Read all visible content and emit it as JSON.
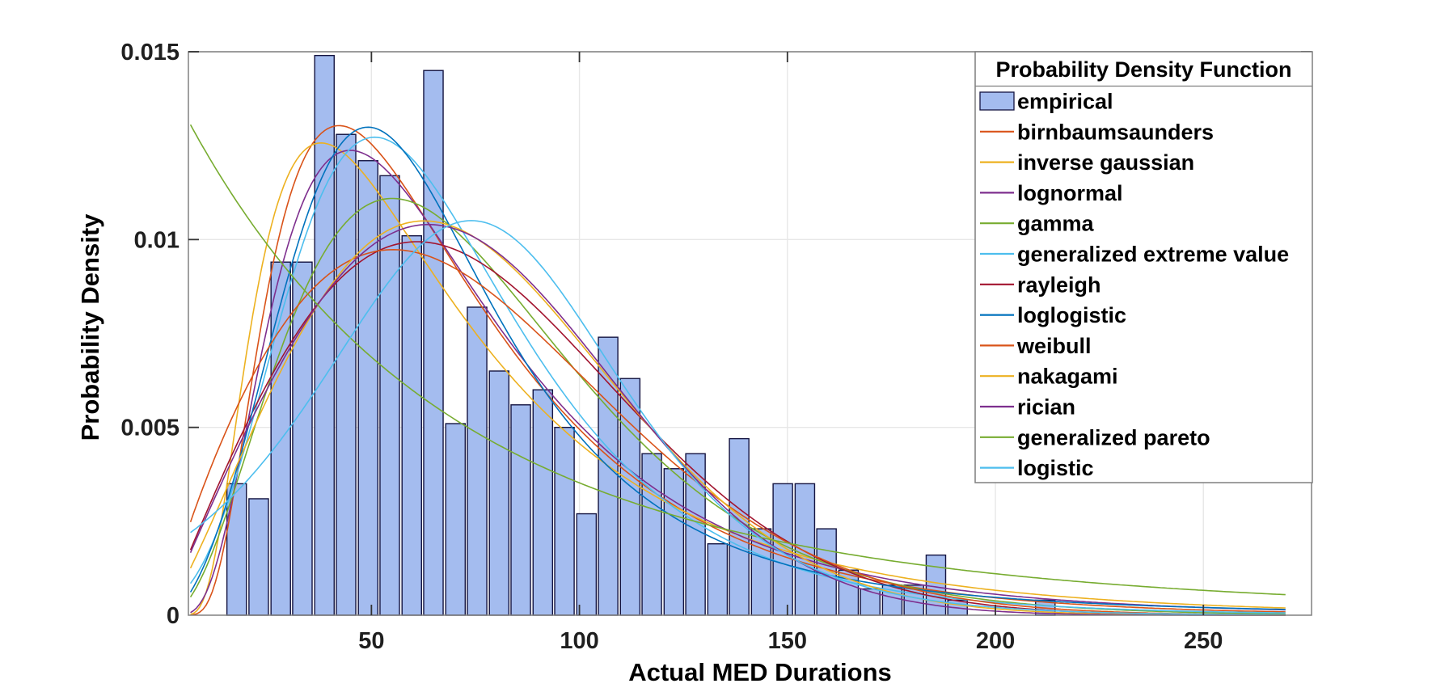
{
  "figure": {
    "background": "#ffffff"
  },
  "style": {
    "grid_color": "#E7E7E7",
    "box_color": "#808080",
    "tick_color": "#333333",
    "tick_label_color": "#1F1F1F",
    "text_color": "#000000",
    "bar_fill": "#A4BCEF",
    "bar_edge": "#131340",
    "legend_border": "#7F7F7F",
    "legend_background": "#FFFFFF"
  },
  "legend": {
    "title": "Probability Density Function"
  },
  "chart_data": {
    "type": "bar",
    "subtype": "histogram_with_fitted_pdf_curves",
    "title": "",
    "xlabel": "Actual MED Durations",
    "ylabel": "Probability Density",
    "xlim": [
      6,
      276
    ],
    "ylim": [
      0,
      0.015
    ],
    "xticks": [
      50,
      100,
      150,
      200,
      250
    ],
    "ytick_values": [
      0,
      0.005,
      0.01,
      0.015
    ],
    "ytick_labels": [
      "0",
      "0.005",
      "0.01",
      "0.015"
    ],
    "grid": true,
    "legend_position": "northeast-inside",
    "empirical": {
      "label": "empirical",
      "bin_width": 5.26,
      "bar_width_units": 4.68,
      "bin_centers": [
        17.6,
        22.9,
        28.2,
        33.4,
        38.7,
        43.9,
        49.2,
        54.4,
        59.7,
        64.9,
        70.2,
        75.4,
        80.7,
        85.9,
        91.2,
        96.4,
        101.7,
        106.9,
        112.2,
        117.4,
        122.7,
        127.9,
        133.2,
        138.4,
        143.7,
        148.9,
        154.2,
        159.4,
        164.7,
        169.9,
        175.2,
        180.4,
        185.7,
        190.9,
        212.0
      ],
      "densities": [
        0.0035,
        0.0031,
        0.0094,
        0.0094,
        0.0149,
        0.0128,
        0.0121,
        0.0117,
        0.0101,
        0.0145,
        0.0051,
        0.0082,
        0.0065,
        0.0056,
        0.006,
        0.005,
        0.0027,
        0.0074,
        0.0063,
        0.0043,
        0.0039,
        0.0043,
        0.0019,
        0.0047,
        0.0023,
        0.0035,
        0.0035,
        0.0023,
        0.0012,
        0.0007,
        0.0008,
        0.0008,
        0.0016,
        0.0004,
        0.0004
      ]
    },
    "curve_x_range": [
      6.5,
      270
    ],
    "series": [
      {
        "label": "birnbaumsaunders",
        "color": "#D95319",
        "dist": "birnbaumsaunders",
        "params": {
          "beta": 62,
          "gamma": 0.6
        }
      },
      {
        "label": "inverse gaussian",
        "color": "#EDB120",
        "dist": "inverse_gaussian",
        "params": {
          "mu": 77,
          "lambda": 150
        }
      },
      {
        "label": "lognormal",
        "color": "#7E2F8E",
        "dist": "lognormal",
        "params": {
          "mu": 4.164,
          "sigma": 0.6
        }
      },
      {
        "label": "gamma",
        "color": "#77AC30",
        "dist": "gamma",
        "params": {
          "shape": 3.5,
          "scale": 22
        }
      },
      {
        "label": "generalized extreme value",
        "color": "#4DBEEE",
        "dist": "gev",
        "params": {
          "k": 0.08,
          "sigma": 29,
          "mu": 53
        }
      },
      {
        "label": "rayleigh",
        "color": "#A2142F",
        "dist": "rayleigh",
        "params": {
          "sigma": 61
        }
      },
      {
        "label": "loglogistic",
        "color": "#0072BD",
        "dist": "loglogistic",
        "params": {
          "alpha": 63,
          "beta": 2.9
        }
      },
      {
        "label": "weibull",
        "color": "#D95319",
        "dist": "weibull",
        "params": {
          "k": 1.85,
          "lambda": 84
        }
      },
      {
        "label": "nakagami",
        "color": "#EDB120",
        "dist": "nakagami",
        "params": {
          "m": 1.1,
          "omega": 7200
        }
      },
      {
        "label": "rician",
        "color": "#7E2F8E",
        "dist": "rician",
        "params": {
          "nu": 50,
          "sigma": 47
        }
      },
      {
        "label": "generalized pareto",
        "color": "#77AC30",
        "dist": "generalized_pareto",
        "params": {
          "xi": 0.18,
          "sigma": 76,
          "theta": 6
        }
      },
      {
        "label": "logistic",
        "color": "#4DBEEE",
        "dist": "logistic",
        "params": {
          "mu": 74,
          "s": 23.8
        }
      }
    ]
  }
}
